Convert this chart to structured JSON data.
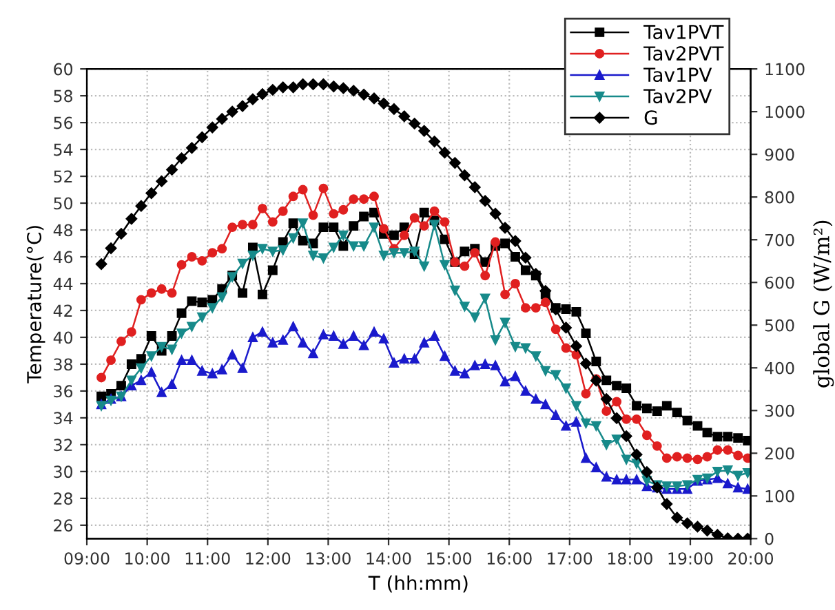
{
  "chart_data": {
    "type": "line",
    "xlabel": "T (hh:mm)",
    "ylabel": "Temperature(°C)",
    "y2label": "global G (W/m²)",
    "x": [
      9.24,
      9.4,
      9.57,
      9.74,
      9.9,
      10.07,
      10.24,
      10.41,
      10.57,
      10.74,
      10.91,
      11.08,
      11.24,
      11.41,
      11.58,
      11.75,
      11.91,
      12.08,
      12.25,
      12.42,
      12.58,
      12.75,
      12.92,
      13.09,
      13.25,
      13.42,
      13.59,
      13.76,
      13.92,
      14.09,
      14.26,
      14.43,
      14.59,
      14.76,
      14.93,
      15.1,
      15.26,
      15.43,
      15.6,
      15.77,
      15.93,
      16.1,
      16.27,
      16.44,
      16.6,
      16.77,
      16.94,
      17.11,
      17.27,
      17.44,
      17.61,
      17.78,
      17.94,
      18.11,
      18.28,
      18.45,
      18.61,
      18.78,
      18.95,
      19.12,
      19.28,
      19.45,
      19.62,
      19.79,
      19.95
    ],
    "series": [
      {
        "name": "Tav1PVT",
        "color": "#000000",
        "marker": "square",
        "values": [
          35.6,
          35.8,
          36.4,
          38.0,
          38.4,
          40.1,
          39.0,
          40.1,
          41.8,
          42.7,
          42.6,
          42.8,
          43.6,
          44.6,
          43.3,
          46.7,
          43.2,
          45.0,
          47.1,
          48.5,
          47.2,
          47.0,
          48.2,
          48.2,
          46.8,
          48.3,
          49.0,
          49.3,
          47.7,
          47.6,
          48.2,
          46.2,
          49.3,
          48.7,
          47.3,
          45.6,
          46.4,
          46.6,
          45.6,
          46.8,
          47.0,
          46.0,
          45.0,
          44.6,
          43.2,
          42.2,
          42.1,
          41.9,
          40.3,
          38.2,
          36.8,
          36.4,
          36.2,
          34.9,
          34.7,
          34.5,
          34.9,
          34.4,
          33.8,
          33.4,
          32.9,
          32.6,
          32.6,
          32.5,
          32.3
        ]
      },
      {
        "name": "Tav2PVT",
        "color": "#e02020",
        "marker": "circle",
        "values": [
          37.0,
          38.3,
          39.7,
          40.4,
          42.8,
          43.3,
          43.6,
          43.3,
          45.4,
          46.0,
          45.7,
          46.3,
          46.6,
          48.2,
          48.4,
          48.4,
          49.6,
          48.6,
          49.4,
          50.5,
          51.0,
          49.1,
          51.1,
          49.2,
          49.5,
          50.3,
          50.3,
          50.5,
          48.1,
          46.6,
          47.6,
          48.9,
          48.3,
          49.4,
          48.6,
          45.6,
          45.3,
          46.3,
          44.6,
          47.1,
          43.2,
          44.0,
          42.2,
          42.2,
          42.6,
          40.6,
          39.2,
          38.7,
          35.8,
          36.9,
          34.5,
          35.2,
          33.9,
          33.9,
          32.7,
          31.9,
          31.0,
          31.1,
          31.0,
          30.9,
          31.1,
          31.6,
          31.6,
          31.2,
          31.0
        ]
      },
      {
        "name": "Tav1PV",
        "color": "#1a1acc",
        "marker": "triangle",
        "values": [
          35.0,
          35.4,
          35.6,
          36.4,
          36.8,
          37.4,
          35.9,
          36.5,
          38.3,
          38.3,
          37.5,
          37.3,
          37.6,
          38.7,
          37.7,
          40.0,
          40.4,
          39.6,
          39.8,
          40.8,
          39.6,
          38.8,
          40.2,
          40.1,
          39.5,
          40.1,
          39.4,
          40.4,
          39.9,
          38.1,
          38.4,
          38.4,
          39.6,
          40.1,
          38.6,
          37.5,
          37.3,
          37.9,
          38.0,
          37.9,
          36.7,
          37.1,
          36.0,
          35.4,
          35.0,
          34.2,
          33.4,
          33.7,
          31.0,
          30.3,
          29.6,
          29.4,
          29.4,
          29.4,
          28.9,
          28.8,
          28.7,
          28.7,
          28.7,
          29.3,
          29.4,
          29.5,
          29.1,
          28.8,
          28.7
        ]
      },
      {
        "name": "Tav2PV",
        "color": "#178a8a",
        "marker": "triangle_down",
        "values": [
          34.9,
          35.3,
          35.6,
          36.8,
          37.7,
          38.6,
          39.3,
          39.1,
          40.3,
          40.8,
          41.5,
          42.2,
          43.0,
          44.5,
          45.5,
          46.1,
          46.6,
          46.4,
          46.5,
          47.4,
          48.5,
          46.1,
          45.9,
          46.7,
          47.6,
          46.8,
          46.8,
          48.2,
          46.1,
          46.3,
          46.3,
          46.4,
          45.3,
          48.4,
          45.4,
          43.5,
          42.3,
          41.5,
          42.9,
          39.8,
          41.1,
          39.3,
          39.2,
          38.6,
          37.5,
          37.2,
          36.2,
          34.9,
          33.6,
          33.4,
          32.0,
          32.4,
          30.9,
          30.6,
          29.3,
          29.0,
          28.9,
          28.9,
          29.0,
          29.4,
          29.5,
          30.0,
          30.1,
          29.7,
          29.9
        ]
      },
      {
        "name": "G",
        "color": "#000000",
        "marker": "diamond",
        "axis": "y2",
        "values": [
          643,
          680,
          714,
          749,
          779,
          809,
          837,
          864,
          891,
          915,
          940,
          963,
          983,
          1000,
          1013,
          1029,
          1041,
          1051,
          1057,
          1057,
          1064,
          1064,
          1064,
          1059,
          1055,
          1049,
          1040,
          1031,
          1019,
          1006,
          989,
          972,
          955,
          930,
          904,
          880,
          851,
          823,
          791,
          761,
          728,
          697,
          658,
          620,
          580,
          537,
          494,
          451,
          410,
          370,
          327,
          282,
          240,
          197,
          156,
          120,
          81,
          49,
          36,
          28,
          19,
          9,
          1,
          0,
          0
        ]
      }
    ],
    "xlim": [
      9,
      20
    ],
    "xticks": [
      {
        "value": 9,
        "label": "09:00"
      },
      {
        "value": 10,
        "label": "10:00"
      },
      {
        "value": 11,
        "label": "11:00"
      },
      {
        "value": 12,
        "label": "12:00"
      },
      {
        "value": 13,
        "label": "13:00"
      },
      {
        "value": 14,
        "label": "14:00"
      },
      {
        "value": 15,
        "label": "15:00"
      },
      {
        "value": 16,
        "label": "16:00"
      },
      {
        "value": 17,
        "label": "17:00"
      },
      {
        "value": 18,
        "label": "18:00"
      },
      {
        "value": 19,
        "label": "19:00"
      },
      {
        "value": 20,
        "label": "20:00"
      }
    ],
    "ylim": [
      25,
      60
    ],
    "yticks": [
      26,
      28,
      30,
      32,
      34,
      36,
      38,
      40,
      42,
      44,
      46,
      48,
      50,
      52,
      54,
      56,
      58,
      60
    ],
    "y2lim": [
      0,
      1100
    ],
    "y2ticks": [
      0,
      100,
      200,
      300,
      400,
      500,
      600,
      700,
      800,
      900,
      1000,
      1100
    ],
    "grid": true,
    "legend": "top right",
    "line_style": "solid"
  }
}
